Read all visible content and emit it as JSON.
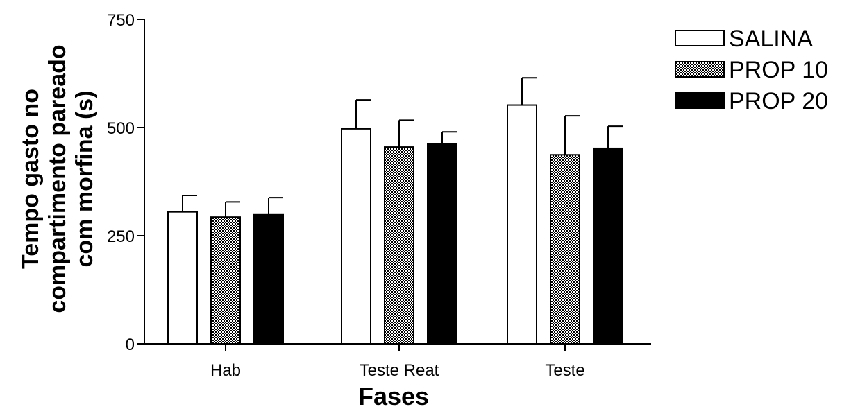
{
  "chart_data": {
    "type": "bar",
    "title": "",
    "xlabel": "Fases",
    "ylabel_lines": [
      "Tempo gasto no",
      "compartimento pareado",
      "com morfina (s)"
    ],
    "categories": [
      "Hab",
      "Teste Reat",
      "Teste"
    ],
    "ylim": [
      0,
      750
    ],
    "yticks": [
      0,
      250,
      500,
      750
    ],
    "grid": false,
    "legend_position": "top-right",
    "series": [
      {
        "name": "SALINA",
        "fill": "white",
        "values": [
          305,
          497,
          552
        ],
        "errors": [
          38,
          67,
          63
        ]
      },
      {
        "name": "PROP 10",
        "fill": "dotted",
        "values": [
          293,
          455,
          437
        ],
        "errors": [
          35,
          62,
          90
        ]
      },
      {
        "name": "PROP 20",
        "fill": "black",
        "values": [
          300,
          462,
          452
        ],
        "errors": [
          38,
          28,
          51
        ]
      }
    ]
  }
}
